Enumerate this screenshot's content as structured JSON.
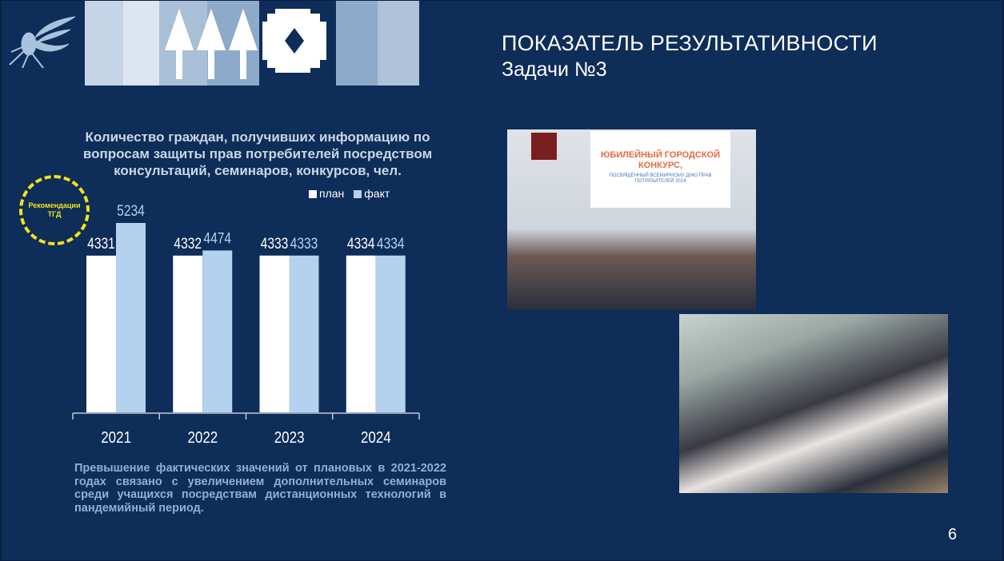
{
  "header": {
    "title": "ПОКАЗАТЕЛЬ РЕЗУЛЬТАТИВНОСТИ",
    "subtitle": "Задачи №3"
  },
  "badge": {
    "line1": "Рекомендации",
    "line2": "ТГД",
    "color": "#f3e21b"
  },
  "photos": [
    {
      "banner_title": "ЮБИЛЕЙНЫЙ ГОРОДСКОЙ КОНКУРС,",
      "banner_sub": "ПОСВЯЩЁННЫЙ ВСЕМИРНОМУ ДНЮ ПРАВ ПОТРЕБИТЕЛЕЙ 2024"
    },
    {}
  ],
  "chart_data": {
    "type": "bar",
    "title": "Количество граждан, получивших информацию по вопросам защиты прав потребителей посредством консультаций, семинаров, конкурсов, чел.",
    "categories": [
      "2021",
      "2022",
      "2023",
      "2024"
    ],
    "series": [
      {
        "name": "план",
        "values": [
          4331,
          4332,
          4333,
          4334
        ],
        "color": "#ffffff"
      },
      {
        "name": "факт",
        "values": [
          5234,
          4474,
          4333,
          4334
        ],
        "color": "#b4d2ee"
      }
    ],
    "ylim": [
      0,
      5500
    ],
    "grid": false,
    "legend": "top-right"
  },
  "note": "Превышение фактических значений от плановых  в 2021-2022 годах связано с увеличением дополнительных семинаров среди учащихся посредствам дистанционных технологий в пандемийный период.",
  "page_number": "6",
  "colors": {
    "background": "#0e2d58",
    "accent_light": "#b4d2ee"
  }
}
